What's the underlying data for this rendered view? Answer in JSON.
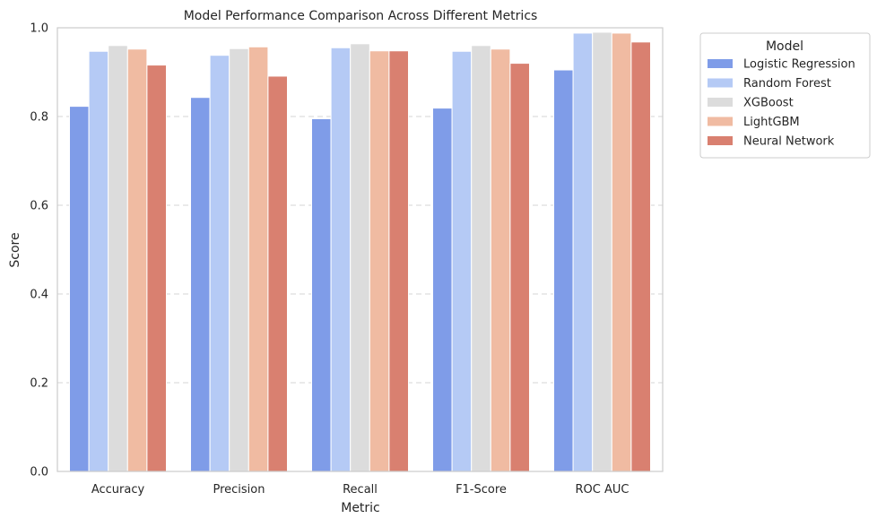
{
  "chart_data": {
    "type": "bar",
    "title": "Model Performance Comparison Across Different Metrics",
    "xlabel": "Metric",
    "ylabel": "Score",
    "ylim": [
      0,
      1.0
    ],
    "yticks": [
      "0.0",
      "0.2",
      "0.4",
      "0.6",
      "0.8",
      "1.0"
    ],
    "grid": "horizontal dashed",
    "legend_position": "outside-right",
    "legend_title": "Model",
    "categories": [
      "Accuracy",
      "Precision",
      "Recall",
      "F1-Score",
      "ROC AUC"
    ],
    "series": [
      {
        "name": "Logistic Regression",
        "color": "#7f9ce8",
        "values": [
          0.823,
          0.843,
          0.795,
          0.819,
          0.905
        ]
      },
      {
        "name": "Random Forest",
        "color": "#b5caf5",
        "values": [
          0.947,
          0.938,
          0.955,
          0.947,
          0.988
        ]
      },
      {
        "name": "XGBoost",
        "color": "#dcdcdc",
        "values": [
          0.96,
          0.953,
          0.964,
          0.96,
          0.99
        ]
      },
      {
        "name": "LightGBM",
        "color": "#f0bba2",
        "values": [
          0.952,
          0.957,
          0.948,
          0.952,
          0.988
        ]
      },
      {
        "name": "Neural Network",
        "color": "#d98070",
        "values": [
          0.916,
          0.891,
          0.948,
          0.92,
          0.968
        ]
      }
    ]
  }
}
